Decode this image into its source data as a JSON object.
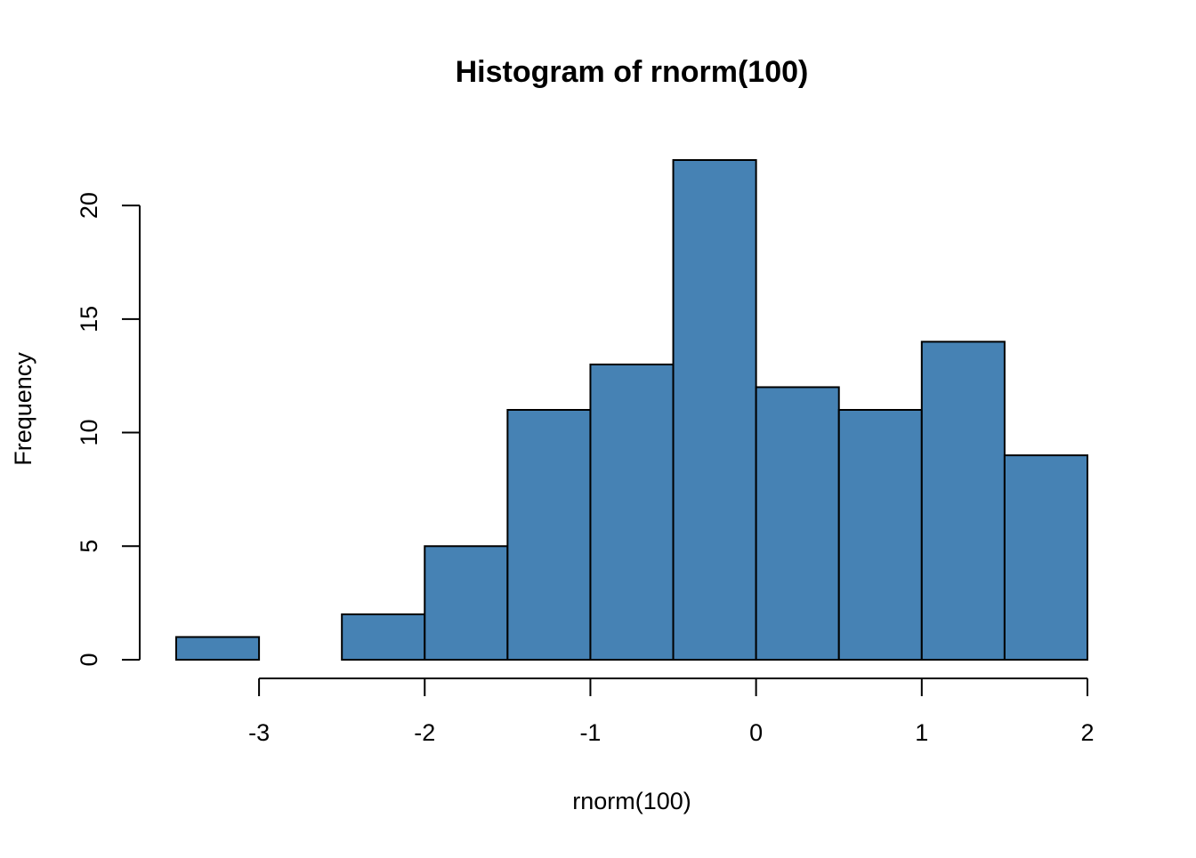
{
  "chart_data": {
    "type": "bar",
    "title": "Histogram of rnorm(100)",
    "xlabel": "rnorm(100)",
    "ylabel": "Frequency",
    "bin_edges": [
      -3.5,
      -3.0,
      -2.5,
      -2.0,
      -1.5,
      -1.0,
      -0.5,
      0.0,
      0.5,
      1.0,
      1.5,
      2.0
    ],
    "values": [
      1,
      0,
      2,
      5,
      11,
      13,
      22,
      12,
      11,
      14,
      9
    ],
    "x_ticks": [
      -3,
      -2,
      -1,
      0,
      1,
      2
    ],
    "x_tick_labels": [
      "-3",
      "-2",
      "-1",
      "0",
      "1",
      "2"
    ],
    "y_ticks": [
      0,
      5,
      10,
      15,
      20
    ],
    "y_tick_labels": [
      "0",
      "5",
      "10",
      "15",
      "20"
    ],
    "xlim": [
      -3.5,
      2.0
    ],
    "ylim": [
      0,
      22
    ],
    "bar_color": "#4682B4",
    "grid": false,
    "legend": "none"
  }
}
